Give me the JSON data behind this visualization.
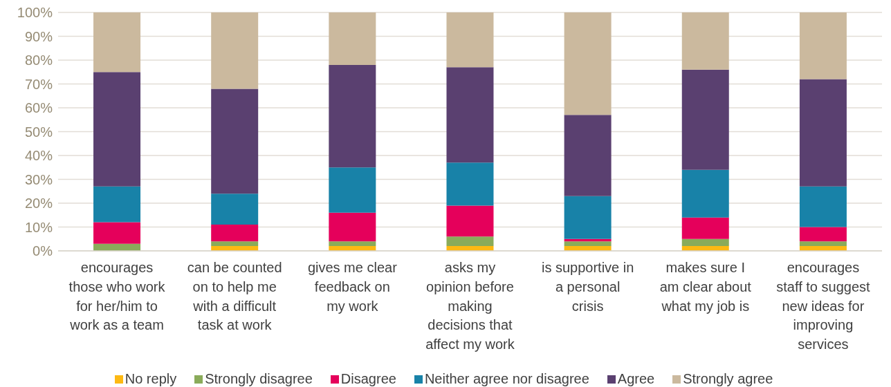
{
  "chart_data": {
    "type": "bar",
    "stacked": true,
    "categories": [
      "encourages those who work for her/him to work as a team",
      "can be counted on to help me with a difficult task at work",
      "gives me clear feedback on my work",
      "asks my opinion before making decisions that affect my work",
      "is supportive in a personal crisis",
      "makes sure I am clear about what my job is",
      "encourages staff to suggest new ideas for improving services"
    ],
    "series": [
      {
        "name": "No reply",
        "color": "#fdb913",
        "values": [
          0,
          2,
          2,
          2,
          2,
          2,
          2
        ]
      },
      {
        "name": "Strongly disagree",
        "color": "#8aab5a",
        "values": [
          3,
          2,
          2,
          4,
          2,
          3,
          2
        ]
      },
      {
        "name": "Disagree",
        "color": "#e5005b",
        "values": [
          9,
          7,
          12,
          13,
          1,
          9,
          6
        ]
      },
      {
        "name": "Neither agree nor disagree",
        "color": "#1882a8",
        "values": [
          15,
          13,
          19,
          18,
          18,
          20,
          17
        ]
      },
      {
        "name": "Agree",
        "color": "#5a4070",
        "values": [
          48,
          44,
          43,
          40,
          34,
          42,
          45
        ]
      },
      {
        "name": "Strongly agree",
        "color": "#cbb99e",
        "values": [
          25,
          32,
          22,
          23,
          43,
          24,
          28
        ]
      }
    ],
    "ylim": [
      0,
      100
    ],
    "yticks": [
      {
        "value": 0,
        "label": "0%"
      },
      {
        "value": 10,
        "label": "10%"
      },
      {
        "value": 20,
        "label": "20%"
      },
      {
        "value": 30,
        "label": "30%"
      },
      {
        "value": 40,
        "label": "40%"
      },
      {
        "value": 50,
        "label": "50%"
      },
      {
        "value": 60,
        "label": "60%"
      },
      {
        "value": 70,
        "label": "70%"
      },
      {
        "value": 80,
        "label": "80%"
      },
      {
        "value": 90,
        "label": "90%"
      },
      {
        "value": 100,
        "label": "100%"
      }
    ],
    "grid": "y",
    "legend": "bottom"
  }
}
